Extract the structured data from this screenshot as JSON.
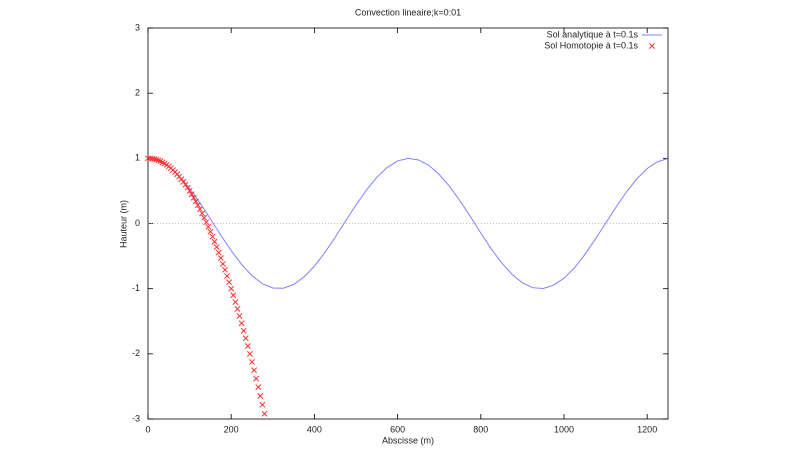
{
  "chart_data": {
    "type": "line",
    "title": "Convection lineaire;k=0:01",
    "x_label": "Abscisse (m)",
    "y_label": "Hauteur (m)",
    "xlim": [
      0,
      1250
    ],
    "ylim": [
      -3,
      3
    ],
    "xticks": [
      0,
      200,
      400,
      600,
      800,
      1000,
      1200
    ],
    "yticks": [
      -3,
      -2,
      -1,
      0,
      1,
      2,
      3
    ],
    "zeroaxis": true,
    "legend": "top-right",
    "series": [
      {
        "name": "Sol analytique à t=0.1s",
        "color": "#8080ff",
        "style": "line",
        "x": [
          0,
          25,
          50,
          75,
          100,
          125,
          150,
          175,
          200,
          225,
          250,
          275,
          300,
          325,
          350,
          375,
          400,
          425,
          450,
          475,
          500,
          525,
          550,
          575,
          600,
          625,
          650,
          675,
          700,
          725,
          750,
          775,
          800,
          825,
          850,
          875,
          900,
          925,
          950,
          975,
          1000,
          1025,
          1050,
          1075,
          1100,
          1125,
          1150,
          1175,
          1200,
          1225,
          1250
        ],
        "values": [
          1,
          0.969,
          0.878,
          0.732,
          0.54,
          0.315,
          0.071,
          -0.178,
          -0.416,
          -0.628,
          -0.801,
          -0.924,
          -0.99,
          -0.994,
          -0.936,
          -0.82,
          -0.654,
          -0.447,
          -0.211,
          0.038,
          0.284,
          0.512,
          0.709,
          0.861,
          0.96,
          1.0,
          0.977,
          0.893,
          0.754,
          0.568,
          0.347,
          0.106,
          -0.146,
          -0.39,
          -0.602,
          -0.78,
          -0.911,
          -0.985,
          -0.997,
          -0.947,
          -0.839,
          -0.681,
          -0.476,
          -0.243,
          0.004,
          0.251,
          0.483,
          0.686,
          0.844,
          0.948,
          0.998
        ]
      },
      {
        "name": "Sol Homotopie à t=0.1s",
        "color": "#ff3030",
        "style": "points",
        "x": [
          0,
          5,
          10,
          15,
          20,
          25,
          30,
          35,
          40,
          45,
          50,
          55,
          60,
          65,
          70,
          75,
          80,
          85,
          90,
          95,
          100,
          105,
          110,
          115,
          120,
          125,
          130,
          135,
          140,
          145,
          150,
          155,
          160,
          165,
          170,
          175,
          180,
          185,
          190,
          195,
          200,
          205,
          210,
          215,
          220,
          225,
          230,
          235,
          240,
          245,
          250,
          255,
          260,
          265,
          270,
          275,
          280
        ],
        "values": [
          1,
          0.999,
          0.995,
          0.989,
          0.98,
          0.969,
          0.955,
          0.939,
          0.92,
          0.899,
          0.875,
          0.849,
          0.82,
          0.789,
          0.755,
          0.719,
          0.68,
          0.639,
          0.595,
          0.549,
          0.5,
          0.449,
          0.395,
          0.339,
          0.28,
          0.219,
          0.155,
          0.089,
          0.02,
          -0.051,
          -0.125,
          -0.201,
          -0.28,
          -0.361,
          -0.445,
          -0.531,
          -0.62,
          -0.711,
          -0.805,
          -0.901,
          -1,
          -1.101,
          -1.205,
          -1.311,
          -1.42,
          -1.531,
          -1.645,
          -1.761,
          -1.88,
          -2.001,
          -2.125,
          -2.251,
          -2.38,
          -2.511,
          -2.645,
          -2.781,
          -2.92
        ]
      }
    ]
  }
}
